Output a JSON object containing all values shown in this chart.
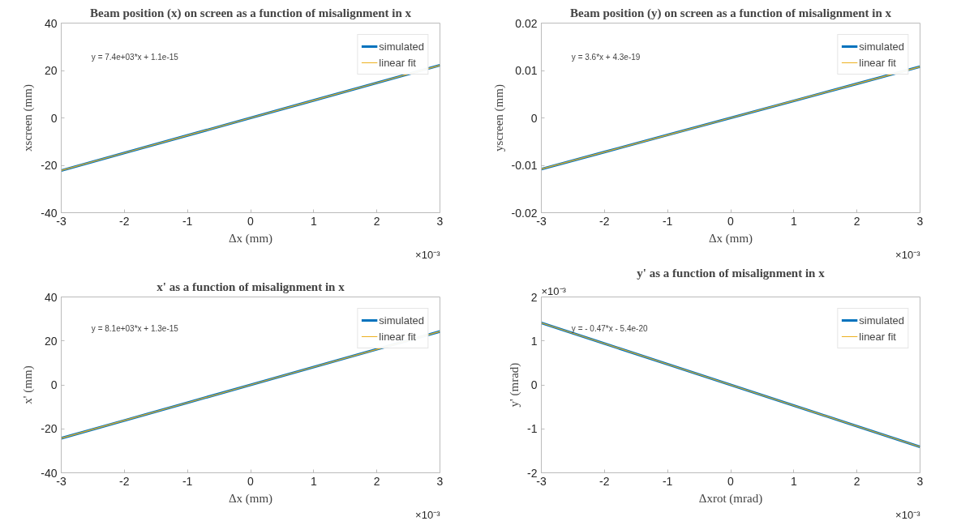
{
  "chart_data": [
    {
      "type": "line",
      "title": "Beam position (x) on screen as a function of misalignment in x",
      "xlabel": "Δx (mm)",
      "ylabel": "xscreen (mm)",
      "x": [
        -3,
        -2,
        -1,
        0,
        1,
        2,
        3
      ],
      "series": [
        {
          "name": "simulated",
          "color": "#0072bd",
          "values": [
            -22.2,
            -14.8,
            -7.4,
            0,
            7.4,
            14.8,
            22.2
          ]
        },
        {
          "name": "linear fit",
          "color": "#edb120",
          "values": [
            -22.2,
            -14.8,
            -7.4,
            0,
            7.4,
            14.8,
            22.2
          ]
        }
      ],
      "xlim": [
        -3,
        3
      ],
      "xticks": [
        -3,
        -2,
        -1,
        0,
        1,
        2,
        3
      ],
      "ylim": [
        -40,
        40
      ],
      "yticks": [
        -40,
        -20,
        0,
        20,
        40
      ],
      "annotations": [
        "y = 7.4e+03*x + 1.1e-15",
        "×10⁻³"
      ],
      "legend": "top right",
      "grid": false,
      "line_style": "solid",
      "marker": "none"
    },
    {
      "type": "line",
      "title": "Beam position (y) on screen as a function of misalignment in x",
      "xlabel": "Δx (mm)",
      "ylabel": "yscreen (mm)",
      "x": [
        -3,
        -2,
        -1,
        0,
        1,
        2,
        3
      ],
      "series": [
        {
          "name": "simulated",
          "color": "#0072bd",
          "values": [
            -0.0108,
            -0.0072,
            -0.0036,
            0,
            0.0036,
            0.0072,
            0.0108
          ]
        },
        {
          "name": "linear fit",
          "color": "#edb120",
          "values": [
            -0.0108,
            -0.0072,
            -0.0036,
            0,
            0.0036,
            0.0072,
            0.0108
          ]
        }
      ],
      "xlim": [
        -3,
        3
      ],
      "xticks": [
        -3,
        -2,
        -1,
        0,
        1,
        2,
        3
      ],
      "ylim": [
        -0.02,
        0.02
      ],
      "yticks": [
        -0.02,
        -0.01,
        0,
        0.01,
        0.02
      ],
      "annotations": [
        "y = 3.6*x + 4.3e-19",
        "×10⁻³"
      ],
      "legend": "top right",
      "grid": false,
      "line_style": "solid",
      "marker": "none"
    },
    {
      "type": "line",
      "title": "x' as a function of misalignment in x",
      "xlabel": "Δx (mm)",
      "ylabel": "x' (mm)",
      "x": [
        -3,
        -2,
        -1,
        0,
        1,
        2,
        3
      ],
      "series": [
        {
          "name": "simulated",
          "color": "#0072bd",
          "values": [
            -24.3,
            -16.2,
            -8.1,
            0,
            8.1,
            16.2,
            24.3
          ]
        },
        {
          "name": "linear fit",
          "color": "#edb120",
          "values": [
            -24.3,
            -16.2,
            -8.1,
            0,
            8.1,
            16.2,
            24.3
          ]
        }
      ],
      "xlim": [
        -3,
        3
      ],
      "xticks": [
        -3,
        -2,
        -1,
        0,
        1,
        2,
        3
      ],
      "ylim": [
        -40,
        40
      ],
      "yticks": [
        -40,
        -20,
        0,
        20,
        40
      ],
      "annotations": [
        "y = 8.1e+03*x + 1.3e-15",
        "×10⁻³"
      ],
      "legend": "top right",
      "grid": false,
      "line_style": "solid",
      "marker": "none"
    },
    {
      "type": "line",
      "title": "y' as a function of misalignment in x",
      "xlabel": "Δxrot (mrad)",
      "ylabel": "y' (mrad)",
      "x": [
        -3,
        -2,
        -1,
        0,
        1,
        2,
        3
      ],
      "series": [
        {
          "name": "simulated",
          "color": "#0072bd",
          "values": [
            1.41,
            0.94,
            0.47,
            0,
            -0.47,
            -0.94,
            -1.41
          ]
        },
        {
          "name": "linear fit",
          "color": "#edb120",
          "values": [
            1.41,
            0.94,
            0.47,
            0,
            -0.47,
            -0.94,
            -1.41
          ]
        }
      ],
      "xlim": [
        -3,
        3
      ],
      "xticks": [
        -3,
        -2,
        -1,
        0,
        1,
        2,
        3
      ],
      "ylim": [
        -2,
        2
      ],
      "yticks": [
        -2,
        -1,
        0,
        1,
        2
      ],
      "annotations": [
        "y = - 0.47*x - 5.4e-20",
        "×10⁻³",
        "×10⁻³"
      ],
      "legend": "top right",
      "grid": false,
      "line_style": "solid",
      "marker": "none"
    }
  ]
}
